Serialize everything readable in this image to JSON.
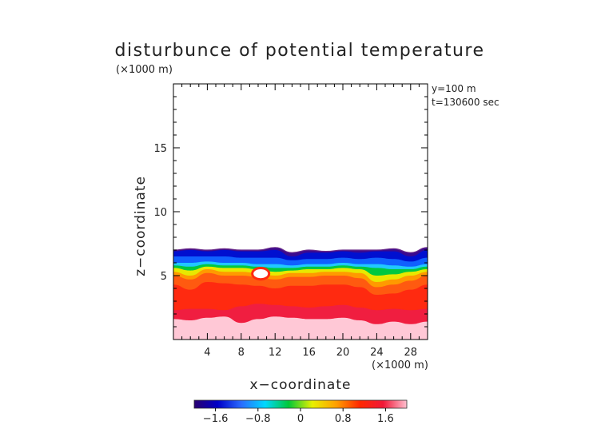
{
  "chart_data": {
    "type": "heatmap",
    "title": "disturbunce of potential temperature",
    "xlabel": "x−coordinate",
    "ylabel": "z−coordinate",
    "x_unit": "(×1000 m)",
    "y_unit": "(×1000 m)",
    "annotations": [
      "y=100 m",
      "t=130600 sec"
    ],
    "xlim": [
      0,
      30
    ],
    "ylim": [
      0,
      20
    ],
    "xticks": [
      4,
      8,
      12,
      16,
      20,
      24,
      28
    ],
    "yticks": [
      5,
      10,
      15
    ],
    "colorbar": {
      "min": -2.0,
      "max": 2.0,
      "ticks": [
        -1.6,
        -0.8,
        0,
        0.8,
        1.6
      ],
      "tick_labels": [
        "−1.6",
        "−0.8",
        "0",
        "0.8",
        "1.6"
      ],
      "colormap": [
        "#2a0070",
        "#0000c8",
        "#2a6cff",
        "#00d8ff",
        "#00c838",
        "#e8f000",
        "#ffa000",
        "#ff2800",
        "#f01838",
        "#ffc0d0"
      ]
    },
    "field_x": [
      0,
      2,
      4,
      6,
      8,
      10,
      12,
      14,
      16,
      18,
      20,
      22,
      24,
      26,
      28,
      30
    ],
    "layers": [
      {
        "value": -2.0,
        "color": "#3a0a90",
        "top": [
          7.0,
          7.1,
          7.0,
          7.1,
          7.0,
          7.0,
          7.2,
          6.8,
          7.0,
          6.9,
          7.0,
          7.0,
          7.0,
          7.1,
          6.8,
          7.2
        ]
      },
      {
        "value": -1.6,
        "color": "#0010d0",
        "top": [
          6.9,
          7.0,
          6.9,
          7.0,
          6.9,
          6.9,
          7.0,
          6.5,
          6.8,
          6.8,
          6.9,
          6.8,
          6.9,
          6.9,
          6.5,
          7.0
        ]
      },
      {
        "value": -1.0,
        "color": "#1060ff",
        "top": [
          6.5,
          6.5,
          6.5,
          6.5,
          6.4,
          6.4,
          6.4,
          6.2,
          6.3,
          6.3,
          6.4,
          6.3,
          6.4,
          6.3,
          6.1,
          6.4
        ]
      },
      {
        "value": -0.4,
        "color": "#20c8ff",
        "top": [
          6.0,
          6.0,
          6.1,
          6.0,
          6.0,
          5.9,
          5.9,
          5.8,
          5.9,
          5.9,
          6.0,
          5.9,
          5.9,
          5.8,
          5.7,
          5.9
        ]
      },
      {
        "value": 0.0,
        "color": "#00c840",
        "top": [
          5.8,
          5.7,
          5.9,
          5.8,
          5.8,
          5.7,
          5.6,
          5.6,
          5.7,
          5.7,
          5.8,
          5.7,
          5.6,
          5.5,
          5.5,
          5.7
        ]
      },
      {
        "value": 0.4,
        "color": "#e8e800",
        "top": [
          5.6,
          5.4,
          5.7,
          5.6,
          5.6,
          5.5,
          5.3,
          5.4,
          5.5,
          5.5,
          5.6,
          5.5,
          5.0,
          5.1,
          5.3,
          5.5
        ]
      },
      {
        "value": 0.9,
        "color": "#ff9a00",
        "top": [
          5.3,
          5.0,
          5.5,
          5.3,
          5.3,
          5.2,
          5.0,
          5.2,
          5.2,
          5.3,
          5.3,
          5.2,
          4.5,
          4.7,
          5.0,
          5.3
        ]
      },
      {
        "value": 1.4,
        "color": "#ff5a10",
        "top": [
          5.0,
          4.7,
          5.2,
          5.0,
          5.0,
          4.9,
          4.7,
          4.9,
          4.9,
          5.0,
          5.0,
          4.8,
          4.1,
          4.3,
          4.6,
          5.0
        ]
      },
      {
        "value": 1.8,
        "color": "#ff2a10",
        "top": [
          4.3,
          3.9,
          4.5,
          4.4,
          4.3,
          4.2,
          4.0,
          4.2,
          4.2,
          4.3,
          4.3,
          4.1,
          3.5,
          3.6,
          3.9,
          4.3
        ]
      },
      {
        "value": 1.9,
        "color": "#f01e40",
        "top": [
          2.3,
          2.4,
          2.4,
          2.3,
          2.6,
          2.8,
          2.7,
          2.6,
          2.5,
          2.6,
          2.7,
          2.5,
          2.3,
          2.4,
          2.3,
          2.4
        ]
      },
      {
        "value": 2.0,
        "color": "#ffc8d6",
        "top": [
          1.6,
          1.5,
          1.7,
          1.8,
          1.3,
          1.6,
          1.8,
          1.7,
          1.6,
          1.6,
          1.7,
          1.5,
          1.2,
          1.4,
          1.2,
          1.4
        ]
      }
    ],
    "features": [
      {
        "kind": "local-maximum",
        "color": "#ffffff",
        "x": 10.3,
        "z": 5.15,
        "rx": 0.85,
        "rz": 0.35
      }
    ]
  }
}
